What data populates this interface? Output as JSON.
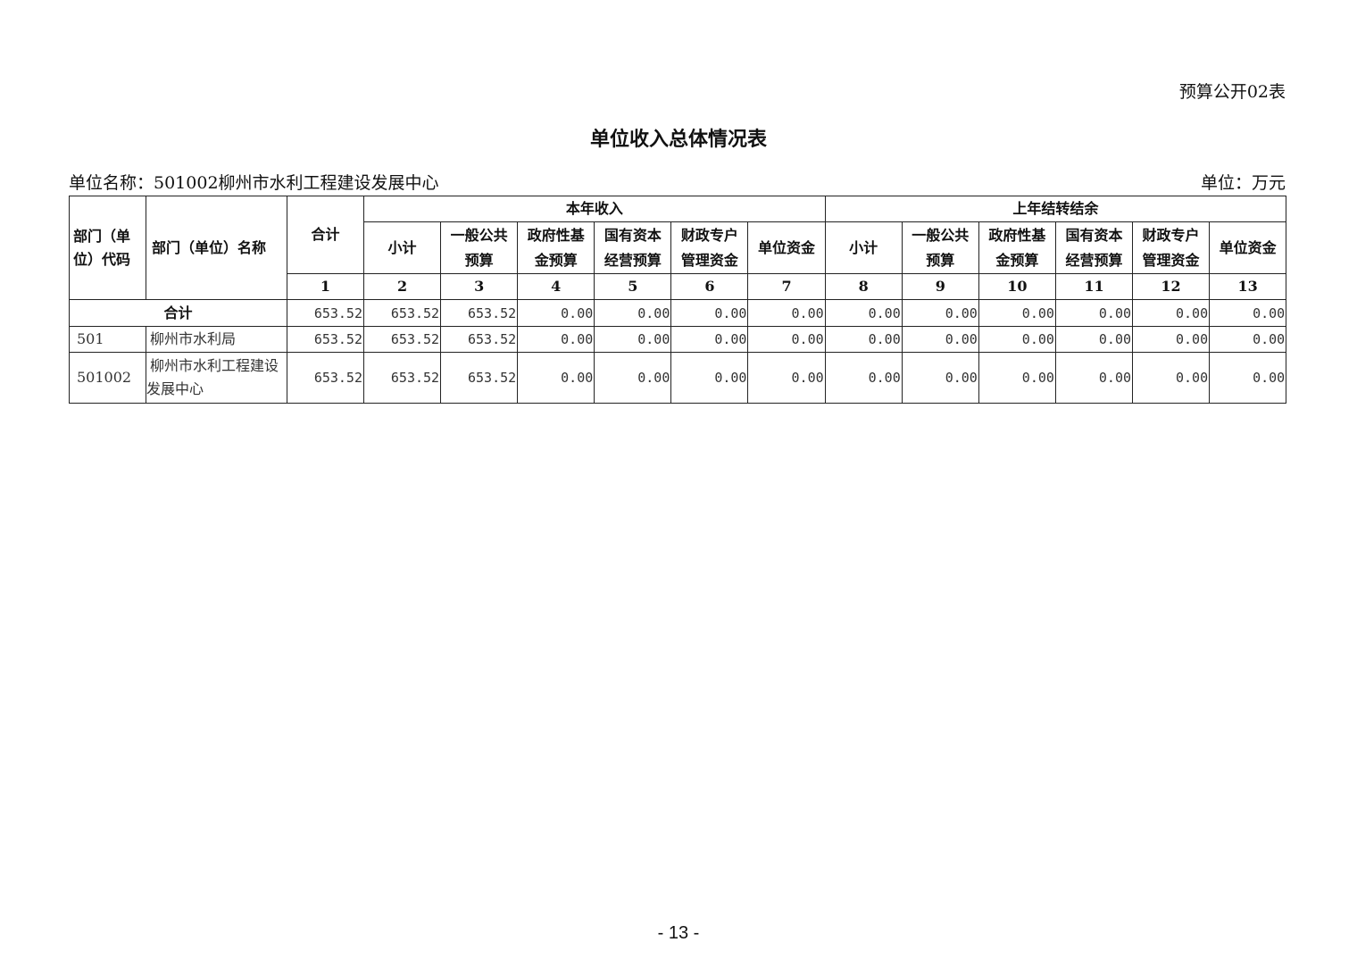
{
  "form_no": "预算公开02表",
  "title": "单位收入总体情况表",
  "unit_name": "单位名称：501002柳州市水利工程建设发展中心",
  "unit": "单位：万元",
  "header": {
    "code": "部门（单位）代码",
    "name": "部门（单位）名称",
    "total": "合计",
    "group_current": "本年收入",
    "group_prior": "上年结转结余",
    "sub_cols": [
      "小计",
      "一般公共预算",
      "政府性基金预算",
      "国有资本经营预算",
      "财政专户管理资金",
      "单位资金",
      "小计",
      "一般公共预算",
      "政府性基金预算",
      "国有资本经营预算",
      "财政专户管理资金",
      "单位资金"
    ],
    "col_numbers": [
      "1",
      "2",
      "3",
      "4",
      "5",
      "6",
      "7",
      "8",
      "9",
      "10",
      "11",
      "12",
      "13"
    ]
  },
  "total_row": {
    "label": "合计",
    "values": [
      "653.52",
      "653.52",
      "653.52",
      "0.00",
      "0.00",
      "0.00",
      "0.00",
      "0.00",
      "0.00",
      "0.00",
      "0.00",
      "0.00",
      "0.00"
    ]
  },
  "rows": [
    {
      "code": "501",
      "name": "柳州市水利局",
      "values": [
        "653.52",
        "653.52",
        "653.52",
        "0.00",
        "0.00",
        "0.00",
        "0.00",
        "0.00",
        "0.00",
        "0.00",
        "0.00",
        "0.00",
        "0.00"
      ]
    },
    {
      "code": "501002",
      "name": "柳州市水利工程建设发展中心",
      "values": [
        "653.52",
        "653.52",
        "653.52",
        "0.00",
        "0.00",
        "0.00",
        "0.00",
        "0.00",
        "0.00",
        "0.00",
        "0.00",
        "0.00",
        "0.00"
      ]
    }
  ],
  "page_number": "- 13 -"
}
